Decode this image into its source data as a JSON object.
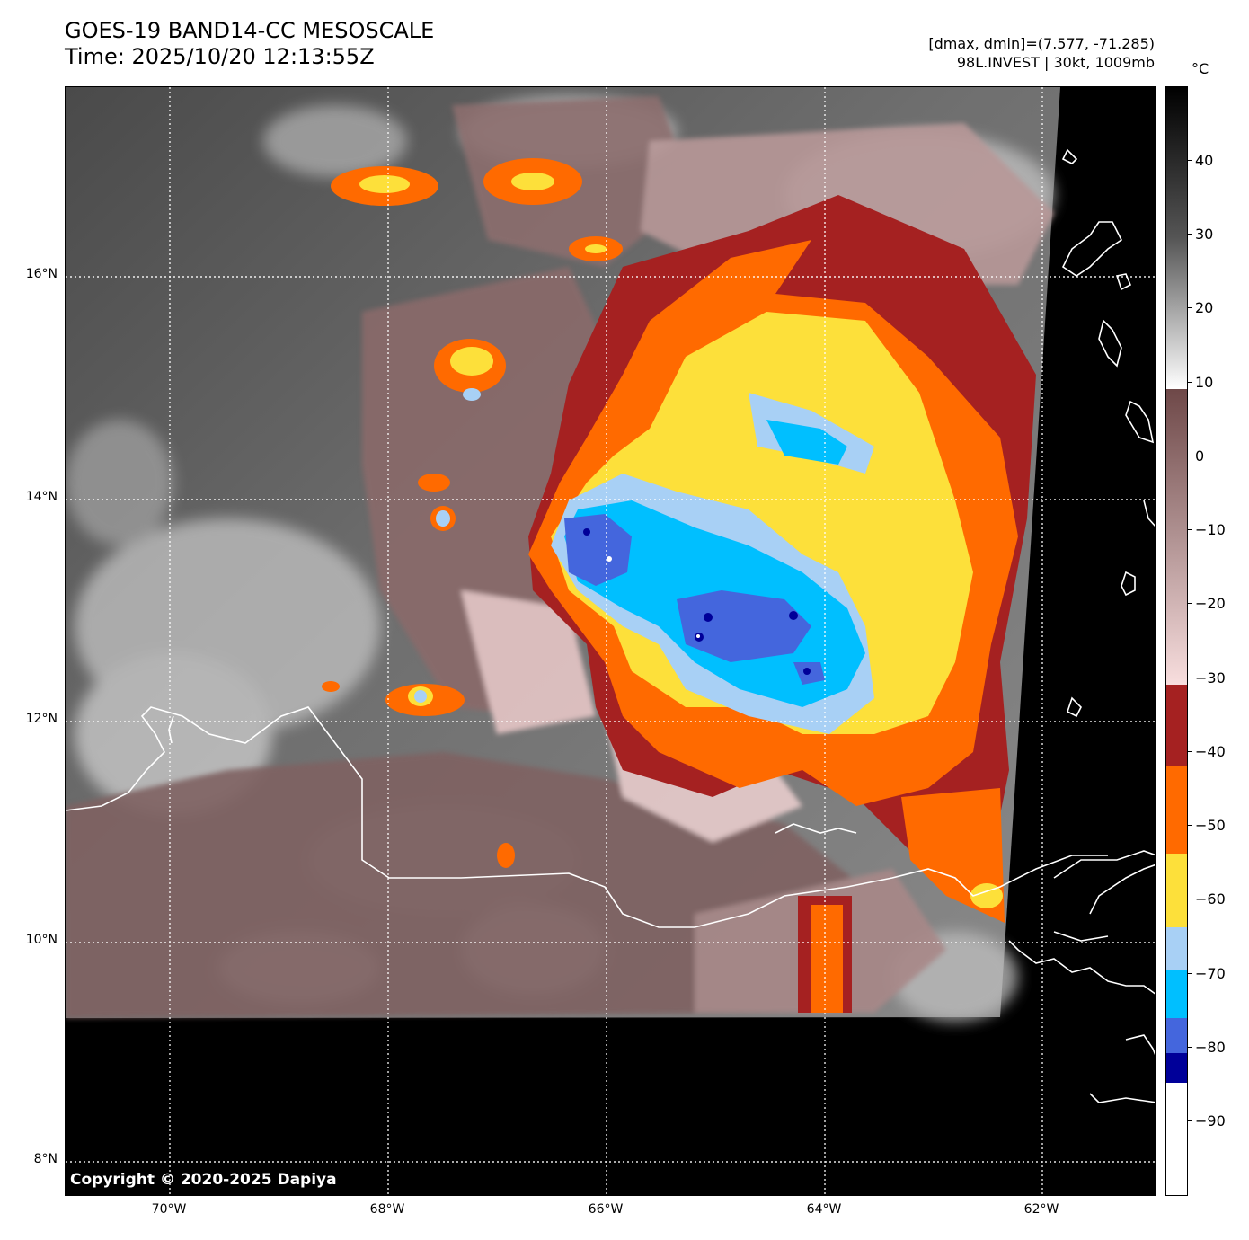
{
  "header": {
    "title_line1": "GOES-19 BAND14-CC MESOSCALE",
    "title_line2": "Time: 2025/10/20 12:13:55Z",
    "info_line1": "[dmax, dmin]=(7.577, -71.285)",
    "info_line2": "98L.INVEST | 30kt, 1009mb"
  },
  "map": {
    "lat_labels": [
      "16°N",
      "14°N",
      "12°N",
      "10°N",
      "8°N"
    ],
    "lon_labels": [
      "70°W",
      "68°W",
      "66°W",
      "64°W",
      "62°W"
    ],
    "copyright": "Copyright © 2020-2025 Dapiya"
  },
  "colorbar": {
    "unit": "°C",
    "ticks": [
      "40",
      "30",
      "20",
      "10",
      "0",
      "−10",
      "−20",
      "−30",
      "−40",
      "−50",
      "−60",
      "−70",
      "−80",
      "−90"
    ],
    "colors": {
      "white": "#ffffff",
      "navy": "#000099",
      "royal_blue": "#4466dd",
      "deep_sky": "#00bfff",
      "light_blue": "#a8d0f5",
      "yellow": "#fde03a",
      "orange": "#ff6a00",
      "dark_red": "#a52121",
      "pink_light": "#f6d6d6",
      "brown": "#7a5656"
    }
  }
}
